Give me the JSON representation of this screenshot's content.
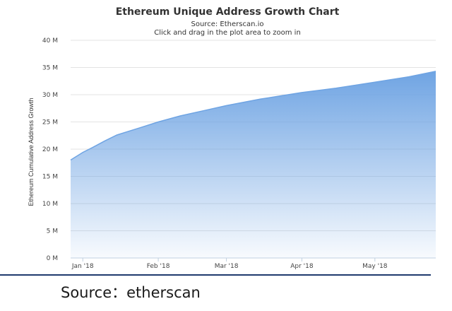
{
  "footer": {
    "source": "Source：etherscan"
  },
  "chart_data": {
    "type": "area",
    "title": "Ethereum Unique Address Growth Chart",
    "subtitle": "Source: Etherscan.io",
    "instruction": "Click and drag in the plot area to zoom in",
    "xlabel": "",
    "ylabel": "Ethereum Cumulative Address Growth",
    "ylim": [
      0,
      40
    ],
    "y_ticks": [
      "0 M",
      "5 M",
      "10 M",
      "15 M",
      "20 M",
      "25 M",
      "30 M",
      "35 M",
      "40 M"
    ],
    "x_ticks": [
      "Jan '18",
      "Feb '18",
      "Mar '18",
      "Apr '18",
      "May '18"
    ],
    "grid": true,
    "series": [
      {
        "color": "#6fa4e3",
        "x": [
          "2017-12-27",
          "2018-01-01",
          "2018-01-05",
          "2018-01-10",
          "2018-01-15",
          "2018-01-20",
          "2018-01-25",
          "2018-02-01",
          "2018-02-10",
          "2018-02-20",
          "2018-03-01",
          "2018-03-15",
          "2018-04-01",
          "2018-04-15",
          "2018-05-01",
          "2018-05-15",
          "2018-05-26"
        ],
        "values": [
          18.0,
          19.4,
          20.3,
          21.5,
          22.6,
          23.3,
          24.0,
          25.0,
          26.1,
          27.1,
          28.0,
          29.2,
          30.4,
          31.2,
          32.3,
          33.3,
          34.3
        ]
      }
    ]
  }
}
